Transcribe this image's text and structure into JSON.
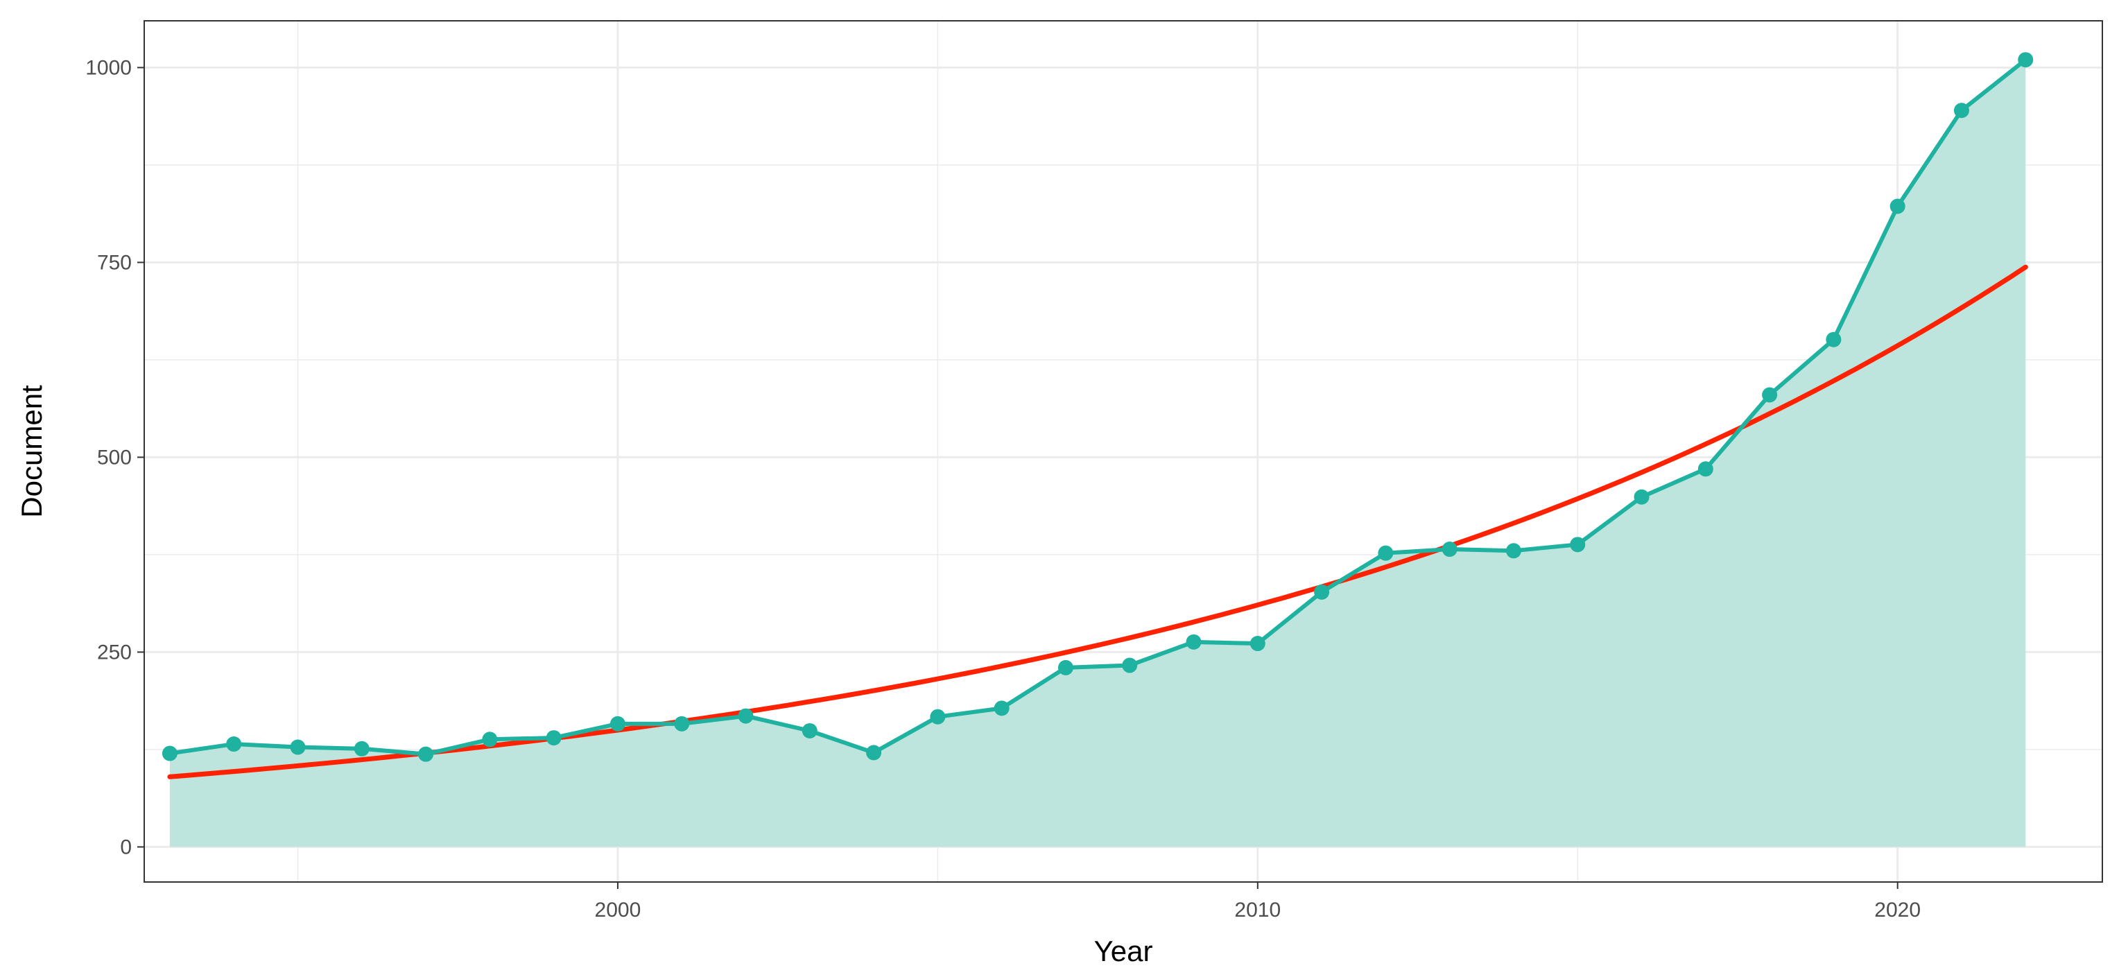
{
  "chart_data": {
    "type": "line",
    "title": "",
    "xlabel": "Year",
    "ylabel": "Document",
    "xlim": [
      1992.6,
      2023.2
    ],
    "ylim": [
      -45,
      1060
    ],
    "x_ticks": [
      2000,
      2010,
      2020
    ],
    "x_minor_ticks": [
      1995,
      2005,
      2015
    ],
    "y_ticks": [
      0,
      250,
      500,
      750,
      1000
    ],
    "y_minor_ticks": [
      125,
      375,
      625,
      875
    ],
    "grid": true,
    "legend": "none",
    "colors": {
      "series_line": "#20b2a0",
      "series_fill": "#bde5dd",
      "fit_line": "#ff2200",
      "grid": "#ebebeb",
      "panel_border": "#333333"
    },
    "series": [
      {
        "x": [
          1993,
          1994,
          1995,
          1996,
          1997,
          1998,
          1999,
          2000,
          2001,
          2002,
          2003,
          2004,
          2005,
          2006,
          2007,
          2008,
          2009,
          2010,
          2011,
          2012,
          2013,
          2014,
          2015,
          2016,
          2017,
          2018,
          2019,
          2020,
          2021,
          2022
        ],
        "values": [
          120,
          132,
          128,
          126,
          119,
          138,
          140,
          158,
          158,
          168,
          149,
          121,
          167,
          178,
          230,
          233,
          263,
          261,
          327,
          377,
          382,
          380,
          388,
          449,
          485,
          580,
          651,
          822,
          945,
          1010
        ]
      }
    ],
    "trend": {
      "type": "exponential",
      "x": [
        1993,
        2022
      ],
      "values": [
        90,
        744
      ]
    }
  }
}
